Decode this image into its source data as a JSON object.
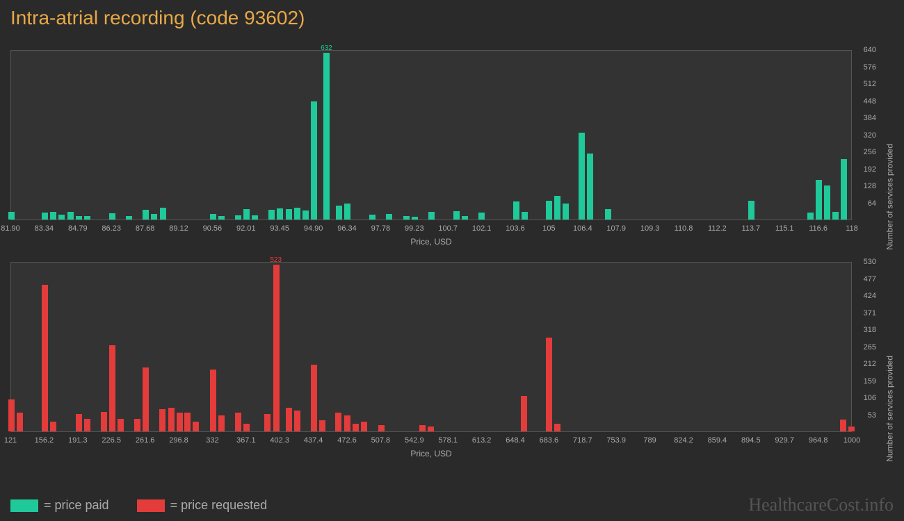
{
  "title": "Intra-atrial recording (code 93602)",
  "watermark": "HealthcareCost.info",
  "y_axis_label": "Number of services provided",
  "x_axis_label": "Price, USD",
  "colors": {
    "paid": "#1fc999",
    "requested": "#e43b3b",
    "bg": "#2a2a2a",
    "plot_bg": "#333333",
    "text": "#aaaaaa",
    "title": "#e8a847"
  },
  "legend": [
    {
      "swatch": "#1fc999",
      "label": "= price paid"
    },
    {
      "swatch": "#e43b3b",
      "label": "= price requested"
    }
  ],
  "top_chart": {
    "type": "bar",
    "color": "#1fc999",
    "x_min": 81.9,
    "x_max": 118.0,
    "y_max": 640,
    "y_ticks": [
      64,
      128,
      192,
      256,
      320,
      384,
      448,
      512,
      576,
      640
    ],
    "x_ticks": [
      "81.90",
      "83.34",
      "84.79",
      "86.23",
      "87.68",
      "89.12",
      "90.56",
      "92.01",
      "93.45",
      "94.90",
      "96.34",
      "97.78",
      "99.23",
      "100.7",
      "102.1",
      "103.6",
      "105",
      "106.4",
      "107.9",
      "109.3",
      "110.8",
      "112.2",
      "113.7",
      "115.1",
      "116.6",
      "118"
    ],
    "peak_label": {
      "x": 95.45,
      "value": 632
    },
    "bars": [
      {
        "x": 81.9,
        "v": 28
      },
      {
        "x": 83.34,
        "v": 26
      },
      {
        "x": 83.7,
        "v": 30
      },
      {
        "x": 84.06,
        "v": 18
      },
      {
        "x": 84.43,
        "v": 30
      },
      {
        "x": 84.79,
        "v": 12
      },
      {
        "x": 85.15,
        "v": 12
      },
      {
        "x": 86.23,
        "v": 24
      },
      {
        "x": 86.95,
        "v": 14
      },
      {
        "x": 87.68,
        "v": 36
      },
      {
        "x": 88.04,
        "v": 20
      },
      {
        "x": 88.4,
        "v": 44
      },
      {
        "x": 90.56,
        "v": 20
      },
      {
        "x": 90.92,
        "v": 14
      },
      {
        "x": 91.65,
        "v": 16
      },
      {
        "x": 92.01,
        "v": 40
      },
      {
        "x": 92.37,
        "v": 16
      },
      {
        "x": 93.09,
        "v": 36
      },
      {
        "x": 93.45,
        "v": 42
      },
      {
        "x": 93.81,
        "v": 40
      },
      {
        "x": 94.18,
        "v": 46
      },
      {
        "x": 94.54,
        "v": 34
      },
      {
        "x": 94.9,
        "v": 448
      },
      {
        "x": 95.45,
        "v": 632
      },
      {
        "x": 95.98,
        "v": 52
      },
      {
        "x": 96.34,
        "v": 60
      },
      {
        "x": 97.42,
        "v": 18
      },
      {
        "x": 98.14,
        "v": 20
      },
      {
        "x": 98.87,
        "v": 14
      },
      {
        "x": 99.23,
        "v": 10
      },
      {
        "x": 99.95,
        "v": 28
      },
      {
        "x": 101.03,
        "v": 32
      },
      {
        "x": 101.39,
        "v": 14
      },
      {
        "x": 102.1,
        "v": 26
      },
      {
        "x": 103.6,
        "v": 68
      },
      {
        "x": 103.96,
        "v": 28
      },
      {
        "x": 105.0,
        "v": 72
      },
      {
        "x": 105.36,
        "v": 90
      },
      {
        "x": 105.72,
        "v": 60
      },
      {
        "x": 106.4,
        "v": 330
      },
      {
        "x": 106.76,
        "v": 250
      },
      {
        "x": 107.54,
        "v": 40
      },
      {
        "x": 113.7,
        "v": 72
      },
      {
        "x": 116.24,
        "v": 26
      },
      {
        "x": 116.6,
        "v": 150
      },
      {
        "x": 116.96,
        "v": 128
      },
      {
        "x": 117.32,
        "v": 30
      },
      {
        "x": 117.68,
        "v": 230
      }
    ]
  },
  "bottom_chart": {
    "type": "bar",
    "color": "#e43b3b",
    "x_min": 121,
    "x_max": 1000,
    "y_max": 530,
    "y_ticks": [
      53,
      106,
      159,
      212,
      265,
      318,
      371,
      424,
      477,
      530
    ],
    "x_ticks": [
      "121",
      "156.2",
      "191.3",
      "226.5",
      "261.6",
      "296.8",
      "332",
      "367.1",
      "402.3",
      "437.4",
      "472.6",
      "507.8",
      "542.9",
      "578.1",
      "613.2",
      "648.4",
      "683.6",
      "718.7",
      "753.9",
      "789",
      "824.2",
      "859.4",
      "894.5",
      "929.7",
      "964.8",
      "1000"
    ],
    "peak_label": {
      "x": 398,
      "value": 523
    },
    "bars": [
      {
        "x": 121,
        "v": 100
      },
      {
        "x": 130,
        "v": 60
      },
      {
        "x": 156.2,
        "v": 460
      },
      {
        "x": 165,
        "v": 30
      },
      {
        "x": 191.3,
        "v": 54
      },
      {
        "x": 200,
        "v": 40
      },
      {
        "x": 218,
        "v": 62
      },
      {
        "x": 226.5,
        "v": 270
      },
      {
        "x": 235,
        "v": 40
      },
      {
        "x": 253,
        "v": 40
      },
      {
        "x": 261.6,
        "v": 200
      },
      {
        "x": 279,
        "v": 70
      },
      {
        "x": 288,
        "v": 75
      },
      {
        "x": 296.8,
        "v": 60
      },
      {
        "x": 305,
        "v": 60
      },
      {
        "x": 314,
        "v": 30
      },
      {
        "x": 332,
        "v": 195
      },
      {
        "x": 341,
        "v": 50
      },
      {
        "x": 358,
        "v": 60
      },
      {
        "x": 367.1,
        "v": 25
      },
      {
        "x": 389,
        "v": 55
      },
      {
        "x": 398,
        "v": 523
      },
      {
        "x": 411,
        "v": 75
      },
      {
        "x": 420,
        "v": 65
      },
      {
        "x": 437.4,
        "v": 210
      },
      {
        "x": 446,
        "v": 35
      },
      {
        "x": 463,
        "v": 58
      },
      {
        "x": 472.6,
        "v": 50
      },
      {
        "x": 481,
        "v": 25
      },
      {
        "x": 490,
        "v": 30
      },
      {
        "x": 507.8,
        "v": 20
      },
      {
        "x": 551,
        "v": 20
      },
      {
        "x": 560,
        "v": 15
      },
      {
        "x": 657,
        "v": 112
      },
      {
        "x": 683.6,
        "v": 295
      },
      {
        "x": 692,
        "v": 25
      },
      {
        "x": 991,
        "v": 38
      },
      {
        "x": 1000,
        "v": 15
      }
    ]
  }
}
